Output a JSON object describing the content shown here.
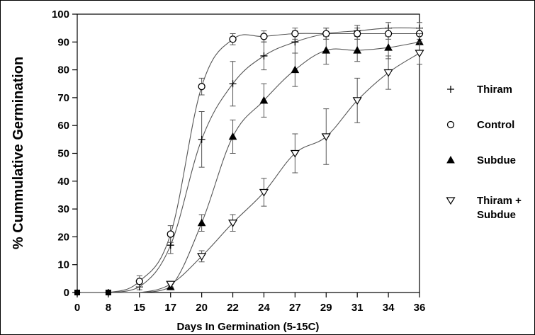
{
  "chart_data": {
    "type": "line",
    "title": "",
    "xlabel": "Days In Germination (5-15C)",
    "ylabel": "% Cummulative Germination",
    "categories": [
      "0",
      "8",
      "15",
      "17",
      "20",
      "22",
      "24",
      "27",
      "29",
      "31",
      "34",
      "36"
    ],
    "ylim": [
      0,
      100
    ],
    "yticks": [
      0,
      10,
      20,
      30,
      40,
      50,
      60,
      70,
      80,
      90,
      100
    ],
    "grid": false,
    "legend_position": "right",
    "series": [
      {
        "name": "Thiram",
        "marker": "plus",
        "values": [
          0,
          0,
          2,
          17,
          55,
          75,
          85,
          90,
          93,
          94,
          95,
          95
        ],
        "error": [
          0,
          0,
          1,
          3,
          10,
          8,
          5,
          4,
          2,
          2,
          2,
          2
        ]
      },
      {
        "name": "Control",
        "marker": "circle",
        "values": [
          0,
          0,
          4,
          21,
          74,
          91,
          92,
          93,
          93,
          93,
          93,
          93
        ],
        "error": [
          0,
          0,
          2,
          3,
          3,
          2,
          2,
          2,
          2,
          2,
          2,
          2
        ]
      },
      {
        "name": "Subdue",
        "marker": "triangle-up",
        "values": [
          0,
          0,
          0,
          2,
          25,
          56,
          69,
          80,
          87,
          87,
          88,
          90
        ],
        "error": [
          0,
          0,
          0,
          1,
          3,
          6,
          6,
          6,
          5,
          4,
          4,
          3
        ]
      },
      {
        "name": "Thiram + Subdue",
        "marker": "triangle-down",
        "values": [
          0,
          0,
          0,
          3,
          13,
          25,
          36,
          50,
          56,
          69,
          79,
          86
        ],
        "error": [
          0,
          0,
          0,
          1,
          2,
          3,
          5,
          7,
          10,
          8,
          6,
          4
        ]
      }
    ]
  },
  "legend": {
    "items": [
      "Thiram",
      "Control",
      "Subdue",
      "Thiram +\nSubdue"
    ]
  }
}
